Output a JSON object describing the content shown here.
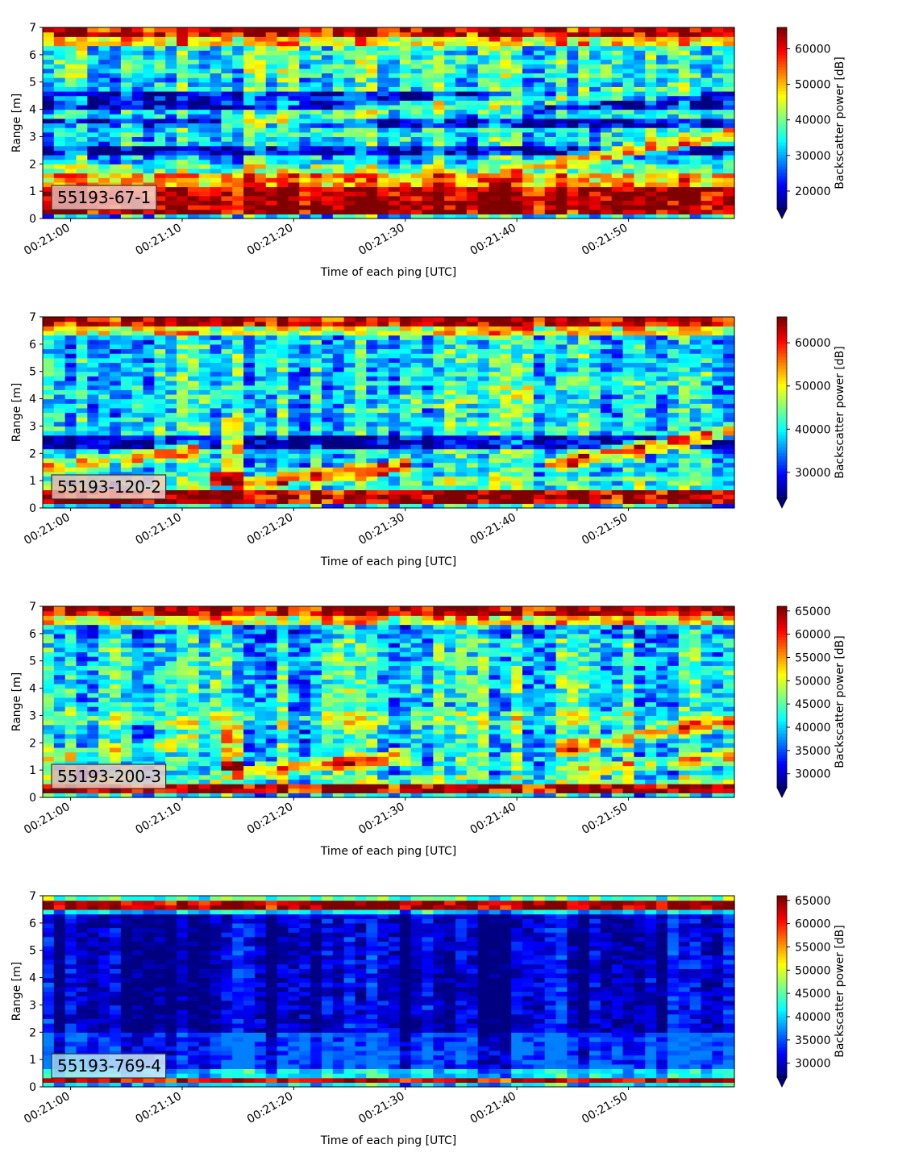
{
  "chart_data": [
    {
      "type": "heatmap",
      "label": "55193-67-1",
      "xlabel": "Time of each ping [UTC]",
      "ylabel": "Range [m]",
      "colorbar_label": "Backscatter power [dB]",
      "xlim": [
        -2.5,
        59.5
      ],
      "ylim": [
        0,
        7
      ],
      "x_ticks": [
        {
          "value": 0,
          "label": "00:21:00"
        },
        {
          "value": 10,
          "label": "00:21:10"
        },
        {
          "value": 20,
          "label": "00:21:20"
        },
        {
          "value": 30,
          "label": "00:21:30"
        },
        {
          "value": 40,
          "label": "00:21:40"
        },
        {
          "value": 50,
          "label": "00:21:50"
        }
      ],
      "y_ticks": [
        0,
        1,
        2,
        3,
        4,
        5,
        6,
        7
      ],
      "color_range": [
        15000,
        66000
      ],
      "colorbar_ticks": [
        20000,
        30000,
        40000,
        50000,
        60000
      ],
      "features": [
        {
          "kind": "band",
          "r0": 0.2,
          "r1": 1.1,
          "v": 64000
        },
        {
          "kind": "band",
          "r0": 1.1,
          "r1": 1.6,
          "v": 52000
        },
        {
          "kind": "band",
          "r0": 1.6,
          "r1": 2.0,
          "v": 40000
        },
        {
          "kind": "band",
          "r0": 2.3,
          "r1": 2.6,
          "v": 19000
        },
        {
          "kind": "band",
          "r0": 3.3,
          "r1": 3.7,
          "v": 21000
        },
        {
          "kind": "band",
          "r0": 4.0,
          "r1": 4.6,
          "v": 21000
        },
        {
          "kind": "band",
          "r0": 5.2,
          "r1": 6.3,
          "v": 36000
        },
        {
          "kind": "band",
          "r0": 6.3,
          "r1": 6.7,
          "v": 48000
        },
        {
          "kind": "band",
          "r0": 6.7,
          "r1": 7.0,
          "v": 62000
        },
        {
          "kind": "line",
          "t0": 14,
          "r0": 3.5,
          "t1": 59,
          "r1": 4.9,
          "v": 38000
        },
        {
          "kind": "line",
          "t0": 40,
          "r0": 1.8,
          "t1": 59,
          "r1": 3.1,
          "v": 50000
        },
        {
          "kind": "line",
          "t0": -2,
          "r0": 3.2,
          "t1": 59,
          "r1": 3.0,
          "v": 34000
        }
      ]
    },
    {
      "type": "heatmap",
      "label": "55193-120-2",
      "xlabel": "Time of each ping [UTC]",
      "ylabel": "Range [m]",
      "colorbar_label": "Backscatter power [dB]",
      "xlim": [
        -2.5,
        59.5
      ],
      "ylim": [
        0,
        7
      ],
      "x_ticks": [
        {
          "value": 0,
          "label": "00:21:00"
        },
        {
          "value": 10,
          "label": "00:21:10"
        },
        {
          "value": 20,
          "label": "00:21:20"
        },
        {
          "value": 30,
          "label": "00:21:30"
        },
        {
          "value": 40,
          "label": "00:21:40"
        },
        {
          "value": 50,
          "label": "00:21:50"
        }
      ],
      "y_ticks": [
        0,
        1,
        2,
        3,
        4,
        5,
        6,
        7
      ],
      "color_range": [
        24000,
        66000
      ],
      "colorbar_ticks": [
        30000,
        40000,
        50000,
        60000
      ],
      "features": [
        {
          "kind": "band",
          "r0": 0.2,
          "r1": 0.6,
          "v": 64000
        },
        {
          "kind": "band",
          "r0": 0.6,
          "r1": 1.1,
          "v": 42000
        },
        {
          "kind": "band",
          "r0": 2.2,
          "r1": 2.6,
          "v": 28000
        },
        {
          "kind": "band",
          "r0": 5.8,
          "r1": 6.3,
          "v": 38000
        },
        {
          "kind": "band",
          "r0": 6.3,
          "r1": 6.7,
          "v": 50000
        },
        {
          "kind": "band",
          "r0": 6.7,
          "r1": 7.0,
          "v": 63000
        },
        {
          "kind": "line",
          "t0": -2,
          "r0": 1.5,
          "t1": 11,
          "r1": 2.1,
          "v": 52000
        },
        {
          "kind": "line",
          "t0": 15,
          "r0": 0.9,
          "t1": 30,
          "r1": 1.5,
          "v": 58000
        },
        {
          "kind": "line",
          "t0": 43,
          "r0": 1.6,
          "t1": 59,
          "r1": 2.8,
          "v": 56000
        },
        {
          "kind": "line",
          "t0": 25,
          "r0": 3.6,
          "t1": 59,
          "r1": 5.0,
          "v": 42000
        },
        {
          "kind": "line",
          "t0": -2,
          "r0": 4.2,
          "t1": 20,
          "r1": 4.5,
          "v": 40000
        },
        {
          "kind": "line",
          "t0": -2,
          "r0": 3.0,
          "t1": 59,
          "r1": 3.1,
          "v": 40000
        },
        {
          "kind": "block",
          "t0": 12.5,
          "t1": 15.5,
          "r0": 0.9,
          "r1": 1.4,
          "v": 64000
        },
        {
          "kind": "block",
          "t0": 14,
          "t1": 15.5,
          "r0": 1.4,
          "r1": 3.3,
          "v": 48000
        }
      ]
    },
    {
      "type": "heatmap",
      "label": "55193-200-3",
      "xlabel": "Time of each ping [UTC]",
      "ylabel": "Range [m]",
      "colorbar_label": "Backscatter power [dB]",
      "xlim": [
        -2.5,
        59.5
      ],
      "ylim": [
        0,
        7
      ],
      "x_ticks": [
        {
          "value": 0,
          "label": "00:21:00"
        },
        {
          "value": 10,
          "label": "00:21:10"
        },
        {
          "value": 20,
          "label": "00:21:20"
        },
        {
          "value": 30,
          "label": "00:21:30"
        },
        {
          "value": 40,
          "label": "00:21:40"
        },
        {
          "value": 50,
          "label": "00:21:50"
        }
      ],
      "y_ticks": [
        0,
        1,
        2,
        3,
        4,
        5,
        6,
        7
      ],
      "color_range": [
        27000,
        66000
      ],
      "colorbar_ticks": [
        30000,
        35000,
        40000,
        45000,
        50000,
        55000,
        60000,
        65000
      ],
      "features": [
        {
          "kind": "band",
          "r0": 0.2,
          "r1": 0.5,
          "v": 64000
        },
        {
          "kind": "band",
          "r0": 0.5,
          "r1": 0.9,
          "v": 44000
        },
        {
          "kind": "band",
          "r0": 5.8,
          "r1": 6.3,
          "v": 38000
        },
        {
          "kind": "band",
          "r0": 6.3,
          "r1": 6.7,
          "v": 52000
        },
        {
          "kind": "band",
          "r0": 6.7,
          "r1": 7.0,
          "v": 63000
        },
        {
          "kind": "line",
          "t0": -2,
          "r0": 1.5,
          "t1": 11,
          "r1": 2.0,
          "v": 48000
        },
        {
          "kind": "line",
          "t0": 15,
          "r0": 0.9,
          "t1": 30,
          "r1": 1.5,
          "v": 56000
        },
        {
          "kind": "line",
          "t0": 44,
          "r0": 1.8,
          "t1": 59,
          "r1": 2.8,
          "v": 54000
        },
        {
          "kind": "line",
          "t0": -2,
          "r0": 2.9,
          "t1": 59,
          "r1": 2.8,
          "v": 46000
        },
        {
          "kind": "line",
          "t0": 20,
          "r0": 3.8,
          "t1": 59,
          "r1": 4.6,
          "v": 42000
        },
        {
          "kind": "line",
          "t0": 46,
          "r0": 1.0,
          "t1": 59,
          "r1": 1.5,
          "v": 50000
        },
        {
          "kind": "block",
          "t0": 13.5,
          "t1": 15.5,
          "r0": 1.0,
          "r1": 1.3,
          "v": 64000
        },
        {
          "kind": "block",
          "t0": 14,
          "t1": 15.5,
          "r0": 1.3,
          "r1": 2.9,
          "v": 50000
        }
      ]
    },
    {
      "type": "heatmap",
      "label": "55193-769-4",
      "xlabel": "Time of each ping [UTC]",
      "ylabel": "Range [m]",
      "colorbar_label": "Backscatter power [dB]",
      "xlim": [
        -2.5,
        59.5
      ],
      "ylim": [
        0,
        7
      ],
      "x_ticks": [
        {
          "value": 0,
          "label": "00:21:00"
        },
        {
          "value": 10,
          "label": "00:21:10"
        },
        {
          "value": 20,
          "label": "00:21:20"
        },
        {
          "value": 30,
          "label": "00:21:30"
        },
        {
          "value": 40,
          "label": "00:21:40"
        },
        {
          "value": 50,
          "label": "00:21:50"
        }
      ],
      "y_ticks": [
        0,
        1,
        2,
        3,
        4,
        5,
        6,
        7
      ],
      "color_range": [
        27000,
        66000
      ],
      "colorbar_ticks": [
        30000,
        35000,
        40000,
        45000,
        50000,
        55000,
        60000,
        65000
      ],
      "features": [
        {
          "kind": "band",
          "r0": 0.0,
          "r1": 0.6,
          "v": 40000
        },
        {
          "kind": "band",
          "r0": 0.2,
          "r1": 0.35,
          "v": 62000
        },
        {
          "kind": "band",
          "r0": 0.6,
          "r1": 2.0,
          "v": 34000
        },
        {
          "kind": "band",
          "r0": 6.4,
          "r1": 6.55,
          "v": 40000
        },
        {
          "kind": "band",
          "r0": 6.55,
          "r1": 6.8,
          "v": 64000
        },
        {
          "kind": "band",
          "r0": 6.8,
          "r1": 7.0,
          "v": 44000
        }
      ]
    }
  ]
}
